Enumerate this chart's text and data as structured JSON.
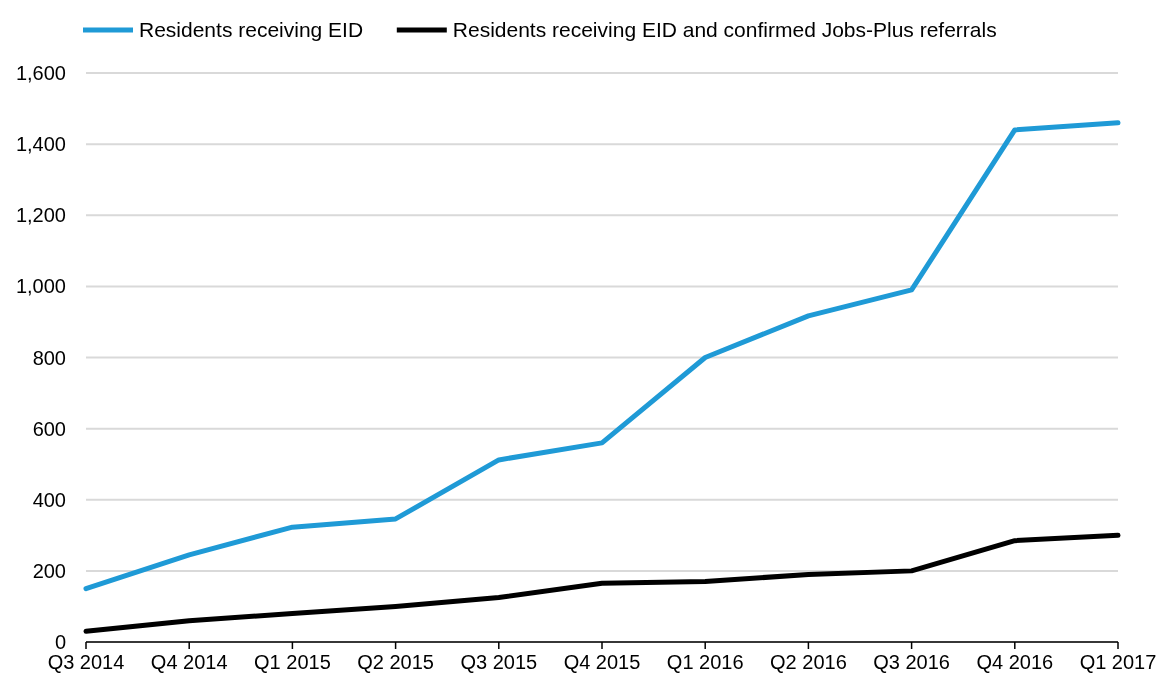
{
  "chart_data": {
    "type": "line",
    "categories": [
      "Q3 2014",
      "Q4 2014",
      "Q1 2015",
      "Q2 2015",
      "Q3 2015",
      "Q4 2015",
      "Q1 2016",
      "Q2 2016",
      "Q3 2016",
      "Q4 2016",
      "Q1 2017"
    ],
    "series": [
      {
        "name": "Residents receiving EID",
        "color": "#1f9ad6",
        "values": [
          150,
          245,
          323,
          346,
          512,
          560,
          800,
          917,
          990,
          1440,
          1460
        ]
      },
      {
        "name": "Residents receiving EID and confirmed Jobs-Plus referrals",
        "color": "#000000",
        "values": [
          30,
          60,
          80,
          100,
          125,
          165,
          170,
          190,
          200,
          285,
          300
        ]
      }
    ],
    "ylim": [
      0,
      1600
    ],
    "yticks": [
      0,
      {
        "value": 200,
        "label": "200"
      },
      {
        "value": 400,
        "label": "400"
      },
      {
        "value": 600,
        "label": "600"
      },
      {
        "value": 800,
        "label": "800"
      },
      {
        "value": 1000,
        "label": "1,000"
      },
      {
        "value": 1200,
        "label": "1,200"
      },
      {
        "value": 1400,
        "label": "1,400"
      },
      {
        "value": 1600,
        "label": "1,600"
      }
    ],
    "grid": "y",
    "legend": "top",
    "marker": "none",
    "line_style": "solid"
  }
}
